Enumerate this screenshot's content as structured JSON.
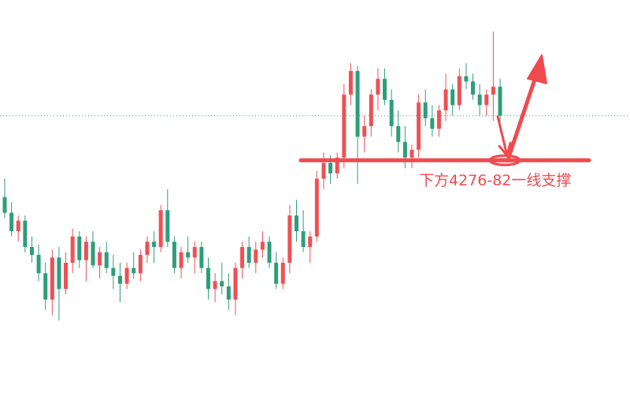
{
  "chart_data": {
    "type": "candlestick",
    "annotation": "下方4276-82一线支撑",
    "ylim": [
      4187,
      4340
    ],
    "up_color": "#ef5054",
    "down_color": "#2d9e7a",
    "annotation_color": "#f04a4f",
    "support_line": 4279,
    "price_line": 4296,
    "open": [
      4265,
      4259,
      4252,
      4256,
      4246,
      4243,
      4236,
      4226,
      4242,
      4230,
      4240,
      4250,
      4241,
      4248,
      4239,
      4244,
      4238,
      4235,
      4232,
      4238,
      4236,
      4243,
      4248,
      4246,
      4260,
      4248,
      4238,
      4244,
      4242,
      4246,
      4238,
      4230,
      4233,
      4231,
      4226,
      4238,
      4246,
      4240,
      4245,
      4248,
      4240,
      4232,
      4240,
      4258,
      4252,
      4246,
      4250,
      4272,
      4278,
      4274,
      4280,
      4304,
      4313,
      4288,
      4292,
      4304,
      4310,
      4302,
      4292,
      4286,
      4280,
      4283,
      4301,
      4295,
      4291,
      4298,
      4306,
      4300,
      4311,
      4309,
      4304,
      4300,
      4304,
      4307
    ],
    "high": [
      4272,
      4263,
      4258,
      4258,
      4250,
      4247,
      4240,
      4245,
      4246,
      4244,
      4253,
      4252,
      4250,
      4252,
      4246,
      4248,
      4243,
      4240,
      4240,
      4244,
      4245,
      4250,
      4252,
      4262,
      4268,
      4250,
      4246,
      4250,
      4248,
      4248,
      4242,
      4236,
      4240,
      4236,
      4240,
      4248,
      4250,
      4248,
      4252,
      4250,
      4244,
      4242,
      4262,
      4264,
      4260,
      4252,
      4275,
      4282,
      4281,
      4282,
      4308,
      4316,
      4315,
      4296,
      4306,
      4314,
      4314,
      4306,
      4298,
      4292,
      4285,
      4304,
      4306,
      4300,
      4300,
      4312,
      4308,
      4314,
      4316,
      4312,
      4308,
      4306,
      4328,
      4310
    ],
    "low": [
      4257,
      4250,
      4248,
      4244,
      4240,
      4233,
      4222,
      4220,
      4218,
      4228,
      4236,
      4238,
      4233,
      4238,
      4234,
      4236,
      4230,
      4225,
      4230,
      4234,
      4233,
      4240,
      4240,
      4244,
      4246,
      4236,
      4234,
      4240,
      4236,
      4236,
      4226,
      4225,
      4228,
      4222,
      4220,
      4234,
      4238,
      4236,
      4242,
      4238,
      4230,
      4230,
      4236,
      4248,
      4244,
      4240,
      4248,
      4268,
      4270,
      4272,
      4276,
      4300,
      4270,
      4282,
      4288,
      4298,
      4300,
      4288,
      4282,
      4276,
      4276,
      4280,
      4292,
      4288,
      4288,
      4294,
      4296,
      4298,
      4306,
      4302,
      4296,
      4296,
      4294,
      4290
    ],
    "close": [
      4259,
      4252,
      4256,
      4246,
      4243,
      4236,
      4226,
      4242,
      4230,
      4240,
      4250,
      4241,
      4248,
      4239,
      4244,
      4238,
      4235,
      4232,
      4238,
      4236,
      4243,
      4248,
      4246,
      4260,
      4248,
      4238,
      4244,
      4242,
      4246,
      4238,
      4230,
      4233,
      4231,
      4226,
      4238,
      4246,
      4240,
      4245,
      4248,
      4240,
      4232,
      4240,
      4258,
      4252,
      4246,
      4250,
      4272,
      4278,
      4274,
      4280,
      4304,
      4313,
      4288,
      4292,
      4304,
      4310,
      4302,
      4292,
      4286,
      4280,
      4283,
      4301,
      4295,
      4291,
      4298,
      4306,
      4300,
      4311,
      4309,
      4304,
      4300,
      4304,
      4307,
      4296
    ]
  }
}
